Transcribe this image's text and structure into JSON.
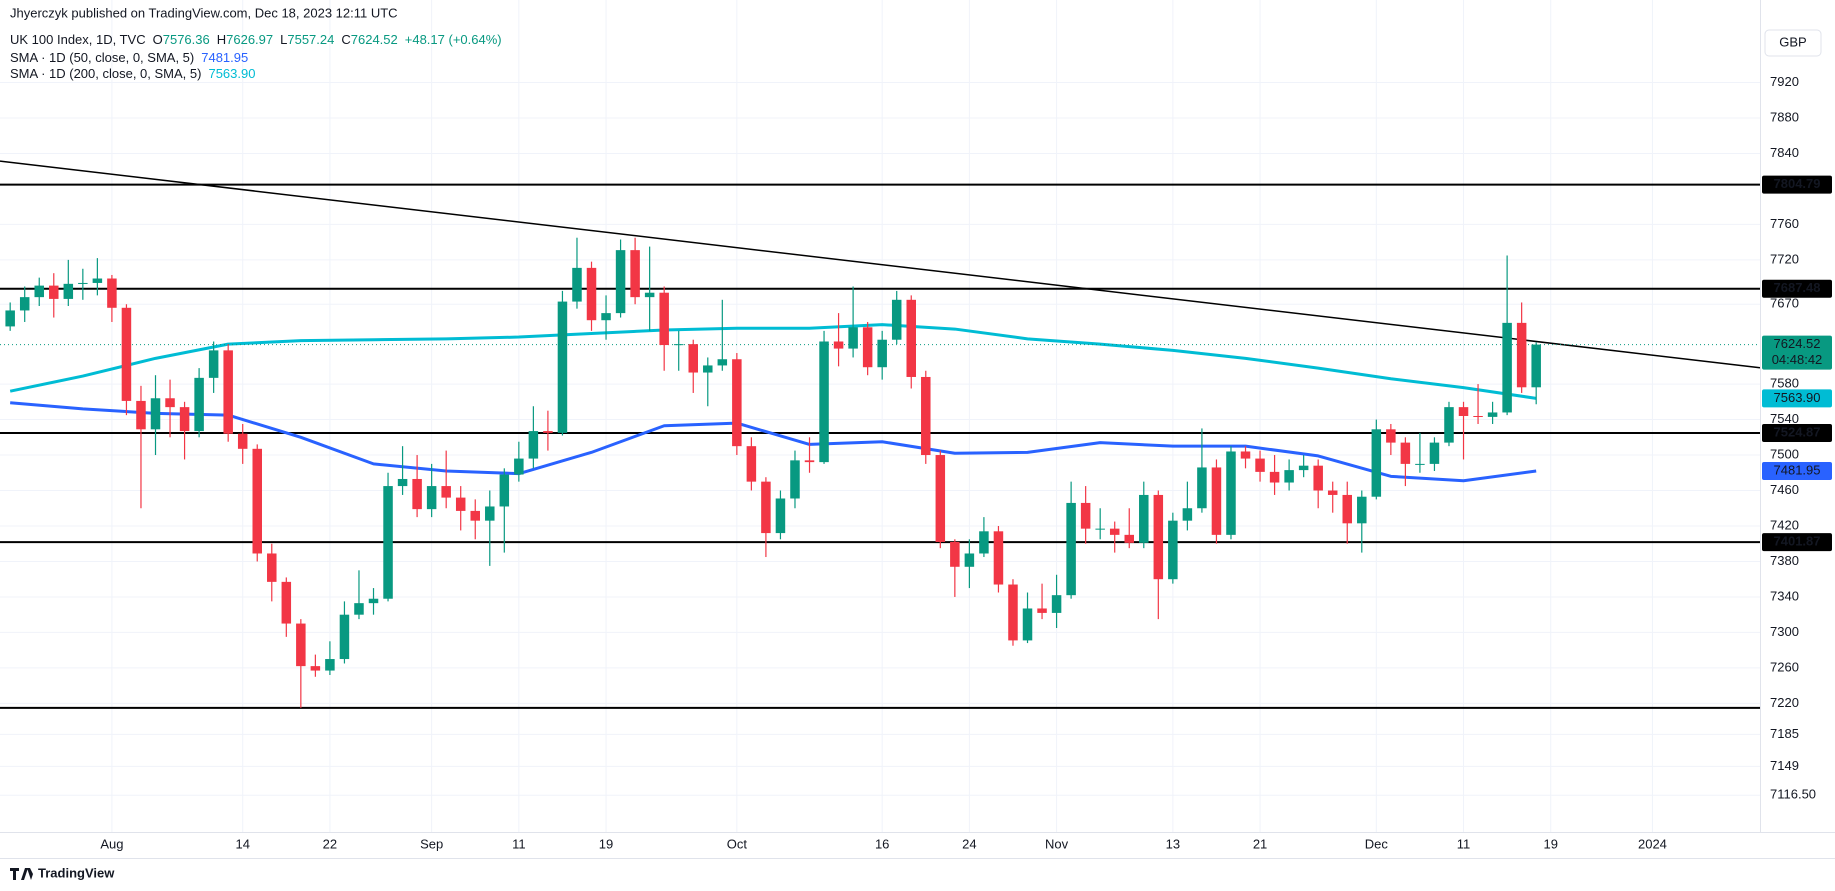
{
  "chart_data": {
    "type": "candlestick",
    "publisher": "Jhyerczyk published on TradingView.com, Dec 18, 2023 12:11 UTC",
    "symbol": "UK 100 Index, 1D, TVC",
    "ohlc_legend": [
      {
        "label": "O",
        "value": 7576.36
      },
      {
        "label": "H",
        "value": 7626.97
      },
      {
        "label": "L",
        "value": 7557.24
      },
      {
        "label": "C",
        "value": 7624.52
      }
    ],
    "change": "+48.17 (+0.64%)",
    "currency": "GBP",
    "brand": "TradingView",
    "countdown": "04:48:42",
    "up_color": "#089981",
    "down_color": "#f23645",
    "xlim": [
      -0.7,
      120.4
    ],
    "ylim": [
      7075,
      8013
    ],
    "xticks": [
      {
        "value": 7,
        "label": "Aug"
      },
      {
        "value": 16,
        "label": "14"
      },
      {
        "value": 22,
        "label": "22"
      },
      {
        "value": 29,
        "label": "Sep"
      },
      {
        "value": 35,
        "label": "11"
      },
      {
        "value": 41,
        "label": "19"
      },
      {
        "value": 50,
        "label": "Oct"
      },
      {
        "value": 60,
        "label": "16"
      },
      {
        "value": 66,
        "label": "24"
      },
      {
        "value": 72,
        "label": "Nov"
      },
      {
        "value": 80,
        "label": "13"
      },
      {
        "value": 86,
        "label": "21"
      },
      {
        "value": 94,
        "label": "Dec"
      },
      {
        "value": 100,
        "label": "11"
      },
      {
        "value": 106,
        "label": "19"
      },
      {
        "value": 113,
        "label": "2024"
      }
    ],
    "yticks": [
      7920,
      7880,
      7840,
      7760,
      7720,
      7670,
      7580,
      7540,
      7500,
      7460,
      7420,
      7380,
      7340,
      7300,
      7260,
      7220,
      7185,
      7149,
      {
        "value": 7116.5,
        "label": "7116.50"
      }
    ],
    "grid": true,
    "open": [
      7645,
      7663,
      7678,
      7691,
      7676,
      7693,
      7694,
      7699,
      7666,
      7561,
      7529,
      7564,
      7554,
      7527,
      7587,
      7618,
      7524,
      7507,
      7389,
      7357,
      7310,
      7262,
      7257,
      7270,
      7320,
      7333,
      7338,
      7465,
      7473,
      7439,
      7465,
      7452,
      7437,
      7426,
      7442,
      7478,
      7496,
      7527,
      7525,
      7673,
      7711,
      7652,
      7660,
      7731,
      7678,
      7683,
      7624,
      7625,
      7593,
      7601,
      7608,
      7510,
      7470,
      7412,
      7451,
      7494,
      7492,
      7628,
      7620,
      7644,
      7599,
      7630,
      7675,
      7588,
      7500,
      7402,
      7374,
      7389,
      7414,
      7354,
      7291,
      7327,
      7322,
      7342,
      7446,
      7417,
      7417,
      7410,
      7401,
      7455,
      7360,
      7426,
      7440,
      7486,
      7410,
      7504,
      7496,
      7481,
      7469,
      7483,
      7488,
      7460,
      7455,
      7423,
      7453,
      7529,
      7514,
      7490,
      7490,
      7514,
      7554,
      7544,
      7543,
      7548,
      7649,
      7576.36
    ],
    "high": [
      7672,
      7690,
      7700,
      7705,
      7720,
      7710,
      7722,
      7703,
      7670,
      7578,
      7590,
      7585,
      7560,
      7598,
      7628,
      7625,
      7535,
      7512,
      7400,
      7362,
      7315,
      7275,
      7290,
      7335,
      7370,
      7350,
      7480,
      7510,
      7500,
      7490,
      7505,
      7465,
      7450,
      7460,
      7485,
      7515,
      7555,
      7550,
      7685,
      7745,
      7718,
      7680,
      7743,
      7745,
      7735,
      7690,
      7640,
      7630,
      7610,
      7675,
      7615,
      7520,
      7475,
      7460,
      7505,
      7520,
      7640,
      7660,
      7690,
      7650,
      7640,
      7685,
      7680,
      7595,
      7505,
      7405,
      7405,
      7430,
      7420,
      7360,
      7345,
      7355,
      7365,
      7470,
      7465,
      7440,
      7425,
      7440,
      7470,
      7460,
      7435,
      7470,
      7530,
      7495,
      7510,
      7510,
      7505,
      7500,
      7495,
      7500,
      7495,
      7470,
      7470,
      7460,
      7540,
      7535,
      7520,
      7525,
      7520,
      7560,
      7560,
      7580,
      7560,
      7725,
      7672,
      7626.97
    ],
    "low": [
      7640,
      7650,
      7668,
      7655,
      7668,
      7675,
      7680,
      7650,
      7545,
      7440,
      7500,
      7520,
      7495,
      7520,
      7570,
      7515,
      7490,
      7380,
      7335,
      7295,
      7215,
      7250,
      7252,
      7265,
      7315,
      7320,
      7335,
      7455,
      7430,
      7430,
      7440,
      7415,
      7405,
      7375,
      7390,
      7470,
      7485,
      7505,
      7522,
      7665,
      7640,
      7630,
      7655,
      7670,
      7640,
      7595,
      7595,
      7570,
      7555,
      7595,
      7500,
      7460,
      7385,
      7405,
      7440,
      7480,
      7490,
      7600,
      7610,
      7590,
      7585,
      7625,
      7575,
      7490,
      7395,
      7340,
      7350,
      7385,
      7345,
      7285,
      7288,
      7315,
      7305,
      7338,
      7400,
      7405,
      7390,
      7395,
      7395,
      7315,
      7355,
      7415,
      7435,
      7400,
      7405,
      7485,
      7470,
      7455,
      7460,
      7475,
      7440,
      7435,
      7400,
      7390,
      7450,
      7500,
      7465,
      7480,
      7482,
      7510,
      7495,
      7535,
      7535,
      7545,
      7570,
      7557.24
    ],
    "close": [
      7663,
      7678,
      7691,
      7676,
      7693,
      7694,
      7699,
      7666,
      7561,
      7529,
      7564,
      7554,
      7527,
      7587,
      7618,
      7524,
      7507,
      7389,
      7357,
      7310,
      7262,
      7257,
      7270,
      7320,
      7333,
      7338,
      7465,
      7473,
      7439,
      7465,
      7452,
      7437,
      7426,
      7442,
      7478,
      7496,
      7527,
      7525,
      7673,
      7711,
      7652,
      7660,
      7731,
      7678,
      7683,
      7624,
      7625,
      7593,
      7601,
      7608,
      7510,
      7470,
      7412,
      7451,
      7494,
      7492,
      7628,
      7620,
      7644,
      7599,
      7630,
      7675,
      7588,
      7500,
      7402,
      7374,
      7389,
      7414,
      7354,
      7291,
      7327,
      7322,
      7342,
      7446,
      7417,
      7417,
      7410,
      7401,
      7455,
      7360,
      7426,
      7440,
      7486,
      7410,
      7504,
      7496,
      7481,
      7469,
      7483,
      7488,
      7460,
      7455,
      7423,
      7453,
      7529,
      7514,
      7490,
      7490,
      7514,
      7554,
      7544,
      7543,
      7548,
      7649,
      7576.36,
      7624.52
    ],
    "overlays": [
      {
        "name": "SMA · 1D (50, close, 0, SMA, 5)",
        "color": "#2962ff",
        "last_label": "7481.95",
        "x": [
          0,
          5,
          10,
          15,
          20,
          25,
          30,
          35,
          40,
          45,
          50,
          55,
          60,
          65,
          70,
          75,
          80,
          85,
          90,
          95,
          100,
          105
        ],
        "values": [
          7559,
          7552,
          7547,
          7545,
          7520,
          7490,
          7482,
          7479,
          7503,
          7533,
          7536,
          7512,
          7515,
          7502,
          7503,
          7514,
          7510,
          7510,
          7499,
          7476,
          7471,
          7481.95
        ]
      },
      {
        "name": "SMA · 1D (200, close, 0, SMA, 5)",
        "color": "#00bcd4",
        "last_label": "7563.90",
        "x": [
          0,
          5,
          10,
          15,
          20,
          25,
          30,
          35,
          40,
          45,
          50,
          55,
          60,
          65,
          70,
          75,
          80,
          85,
          90,
          95,
          100,
          105
        ],
        "values": [
          7572,
          7589,
          7609,
          7625,
          7629,
          7630,
          7631,
          7633,
          7637,
          7641,
          7643,
          7643,
          7647,
          7642,
          7631,
          7625,
          7618,
          7609,
          7598,
          7586,
          7576,
          7563.9
        ]
      }
    ],
    "trendline": {
      "x": [
        0,
        105
      ],
      "values": [
        7830,
        7628
      ]
    },
    "levels": [
      7804.79,
      7687.48,
      7524.87,
      7401.87
    ],
    "levels_unlabeled": [
      7215
    ]
  }
}
